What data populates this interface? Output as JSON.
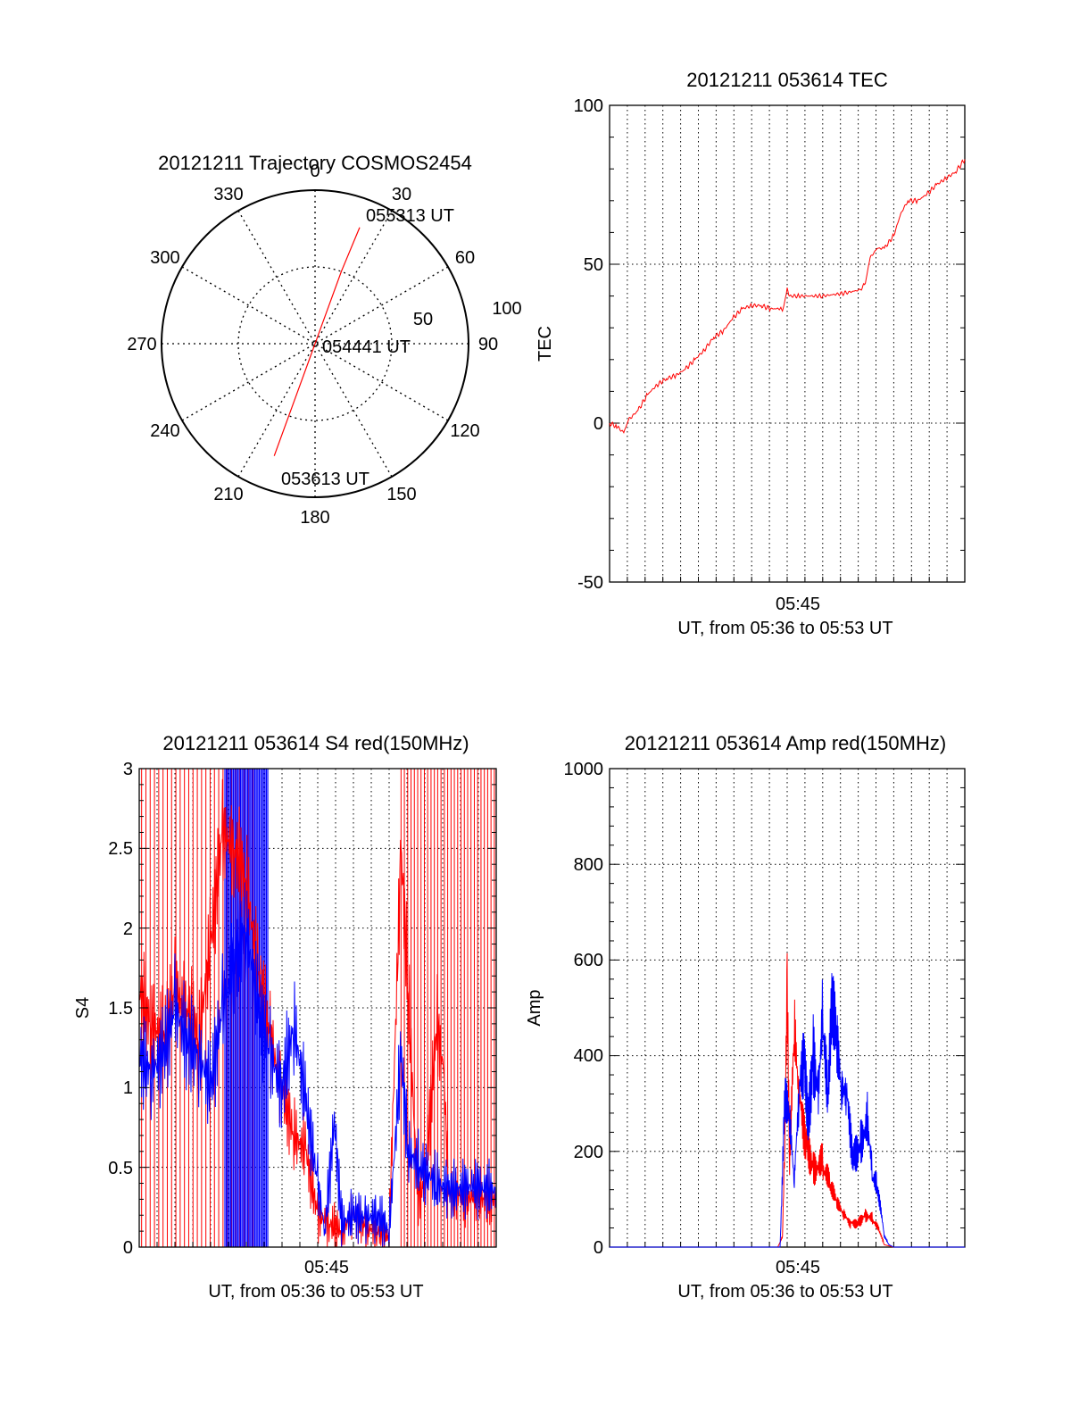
{
  "chart_data": [
    {
      "type": "polar",
      "title": "20121211 Trajectory COSMOS2454",
      "angle_labels": [
        "0",
        "30",
        "60",
        "90",
        "120",
        "150",
        "180",
        "210",
        "240",
        "270",
        "300",
        "330"
      ],
      "radius_labels": [
        "50",
        "100"
      ],
      "rlim": [
        0,
        100
      ],
      "trajectory": [
        {
          "azimuth": 200,
          "elevation": 20
        },
        {
          "azimuth": 200,
          "elevation": 45
        },
        {
          "azimuth": 200,
          "elevation": 70
        },
        {
          "azimuth": 200,
          "elevation": 90
        },
        {
          "azimuth": 20,
          "elevation": 70
        },
        {
          "azimuth": 20,
          "elevation": 45
        },
        {
          "azimuth": 21,
          "elevation": 17
        }
      ],
      "annotations": {
        "end": "055313 UT",
        "middle": "054441 UT",
        "start": "053613 UT"
      },
      "line_color": "#ff0000"
    },
    {
      "type": "line",
      "title": "20121211 053614 TEC",
      "ylabel": "TEC",
      "xlabel": "UT, from 05:36 to 05:53 UT",
      "xtick_label": "05:45",
      "ylim": [
        -50,
        100
      ],
      "yticks": [
        "100",
        "50",
        "0",
        "-50"
      ],
      "series": [
        {
          "color": "#ff0000",
          "points": [
            [
              0,
              0
            ],
            [
              0.3,
              -1
            ],
            [
              0.6,
              -3
            ],
            [
              0.8,
              1
            ],
            [
              1.2,
              4
            ],
            [
              1.6,
              9
            ],
            [
              2.0,
              12
            ],
            [
              2.4,
              14
            ],
            [
              2.8,
              15
            ],
            [
              3.2,
              17
            ],
            [
              3.6,
              20
            ],
            [
              4.0,
              23
            ],
            [
              4.4,
              27
            ],
            [
              4.8,
              29
            ],
            [
              5.2,
              33
            ],
            [
              5.6,
              36
            ],
            [
              6.0,
              37
            ],
            [
              6.4,
              37
            ],
            [
              6.8,
              36
            ],
            [
              7.2,
              36
            ],
            [
              7.3,
              35
            ],
            [
              7.5,
              42
            ],
            [
              7.6,
              40
            ],
            [
              8.0,
              40
            ],
            [
              9.0,
              40
            ],
            [
              10.0,
              41
            ],
            [
              10.6,
              42
            ],
            [
              10.8,
              44
            ],
            [
              11.0,
              52
            ],
            [
              11.3,
              55
            ],
            [
              11.6,
              55
            ],
            [
              12.0,
              59
            ],
            [
              12.3,
              66
            ],
            [
              12.6,
              70
            ],
            [
              13.0,
              70
            ],
            [
              13.4,
              72
            ],
            [
              13.8,
              75
            ],
            [
              14.2,
              77
            ],
            [
              14.6,
              79
            ],
            [
              15.0,
              83
            ]
          ]
        }
      ],
      "xlim": [
        0,
        15
      ]
    },
    {
      "type": "line",
      "title": "20121211 053614 S4 red(150MHz)",
      "ylabel": "S4",
      "xlabel": "UT, from 05:36 to 05:53 UT",
      "xtick_label": "05:45",
      "ylim": [
        0,
        3
      ],
      "yticks": [
        "3",
        "2.5",
        "2",
        "1.5",
        "1",
        "0.5",
        "0"
      ],
      "xlim": [
        0,
        15
      ],
      "series": [
        {
          "color": "#ff0000",
          "points": [
            [
              0,
              1.6
            ],
            [
              0.5,
              1.4
            ],
            [
              1.0,
              1.3
            ],
            [
              1.5,
              1.6
            ],
            [
              2.0,
              1.5
            ],
            [
              2.5,
              1.3
            ],
            [
              3.0,
              1.9
            ],
            [
              3.5,
              2.6
            ],
            [
              4.0,
              2.5
            ],
            [
              4.5,
              2.3
            ],
            [
              5.0,
              1.7
            ],
            [
              5.5,
              1.3
            ],
            [
              6.0,
              1.0
            ],
            [
              6.5,
              0.7
            ],
            [
              7.0,
              0.6
            ],
            [
              7.5,
              0.2
            ],
            [
              8.0,
              0.15
            ],
            [
              8.5,
              0.1
            ],
            [
              9.0,
              0.2
            ],
            [
              9.5,
              0.12
            ],
            [
              10.0,
              0.1
            ],
            [
              10.5,
              0.07
            ],
            [
              11.0,
              2.5
            ],
            [
              11.3,
              1.6
            ],
            [
              11.7,
              0.3
            ],
            [
              12.0,
              0.4
            ],
            [
              12.5,
              1.4
            ],
            [
              12.8,
              1.1
            ],
            [
              13.0,
              0.35
            ],
            [
              14.0,
              0.3
            ],
            [
              15.0,
              0.3
            ]
          ]
        },
        {
          "color": "#0000ff",
          "points": [
            [
              0,
              1.2
            ],
            [
              0.5,
              1.1
            ],
            [
              1.0,
              1.2
            ],
            [
              1.5,
              1.5
            ],
            [
              2.0,
              1.3
            ],
            [
              2.5,
              1.2
            ],
            [
              3.0,
              1.0
            ],
            [
              3.5,
              1.5
            ],
            [
              4.0,
              1.8
            ],
            [
              4.5,
              2.0
            ],
            [
              5.0,
              1.5
            ],
            [
              5.5,
              1.2
            ],
            [
              6.0,
              1.0
            ],
            [
              6.5,
              1.4
            ],
            [
              7.0,
              0.9
            ],
            [
              7.5,
              0.4
            ],
            [
              7.8,
              0.1
            ],
            [
              8.2,
              0.8
            ],
            [
              8.5,
              0.15
            ],
            [
              9.0,
              0.2
            ],
            [
              9.5,
              0.18
            ],
            [
              10.0,
              0.2
            ],
            [
              10.5,
              0.1
            ],
            [
              11.0,
              1.2
            ],
            [
              11.3,
              0.6
            ],
            [
              11.8,
              0.5
            ],
            [
              12.5,
              0.4
            ],
            [
              13.0,
              0.35
            ],
            [
              14.0,
              0.38
            ],
            [
              15.0,
              0.35
            ]
          ]
        }
      ]
    },
    {
      "type": "line",
      "title": "20121211 053614 Amp red(150MHz)",
      "ylabel": "Amp",
      "xlabel": "UT, from 05:36 to 05:53 UT",
      "xtick_label": "05:45",
      "ylim": [
        0,
        1000
      ],
      "yticks": [
        "1000",
        "800",
        "600",
        "400",
        "200",
        "0"
      ],
      "xlim": [
        0,
        15
      ],
      "series": [
        {
          "color": "#ff0000",
          "points": [
            [
              0,
              0
            ],
            [
              7.1,
              0
            ],
            [
              7.3,
              20
            ],
            [
              7.4,
              200
            ],
            [
              7.5,
              480
            ],
            [
              7.6,
              150
            ],
            [
              7.8,
              400
            ],
            [
              8.0,
              300
            ],
            [
              8.3,
              250
            ],
            [
              8.6,
              200
            ],
            [
              9.0,
              180
            ],
            [
              9.3,
              120
            ],
            [
              9.6,
              80
            ],
            [
              9.9,
              60
            ],
            [
              10.2,
              50
            ],
            [
              10.5,
              60
            ],
            [
              10.8,
              80
            ],
            [
              11.1,
              60
            ],
            [
              11.4,
              30
            ],
            [
              11.6,
              5
            ],
            [
              12.0,
              0
            ],
            [
              15.0,
              0
            ]
          ]
        },
        {
          "color": "#0000ff",
          "points": [
            [
              0,
              0
            ],
            [
              7.2,
              0
            ],
            [
              7.4,
              280
            ],
            [
              7.6,
              230
            ],
            [
              7.8,
              120
            ],
            [
              8.0,
              300
            ],
            [
              8.2,
              420
            ],
            [
              8.4,
              300
            ],
            [
              8.6,
              480
            ],
            [
              8.8,
              380
            ],
            [
              9.0,
              520
            ],
            [
              9.2,
              300
            ],
            [
              9.4,
              460
            ],
            [
              9.6,
              370
            ],
            [
              9.8,
              280
            ],
            [
              10.0,
              300
            ],
            [
              10.3,
              200
            ],
            [
              10.6,
              260
            ],
            [
              10.9,
              300
            ],
            [
              11.1,
              160
            ],
            [
              11.3,
              120
            ],
            [
              11.6,
              20
            ],
            [
              11.8,
              5
            ],
            [
              12.0,
              0
            ],
            [
              15.0,
              0
            ]
          ]
        }
      ]
    }
  ]
}
